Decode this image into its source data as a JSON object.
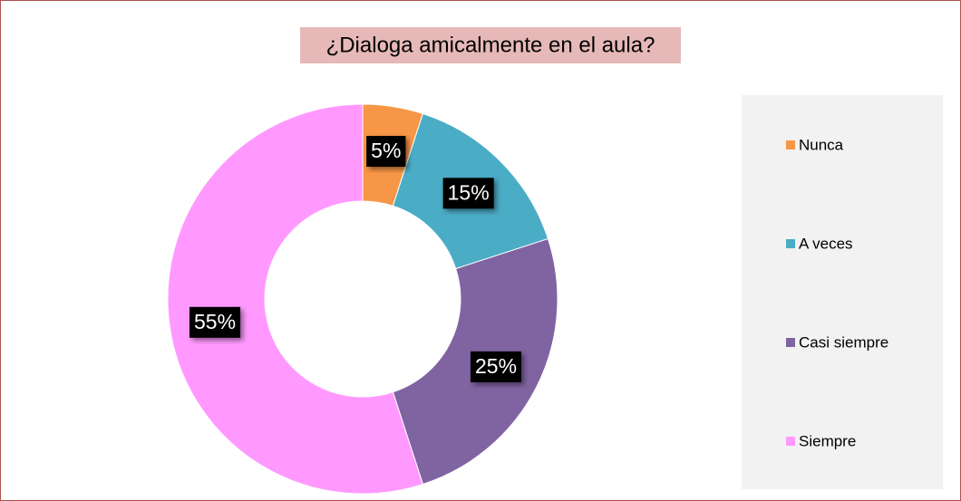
{
  "chart_data": {
    "type": "donut",
    "title": "¿Dialoga amicalmente en el aula?",
    "categories": [
      "Nunca",
      "A veces",
      "Casi siempre",
      "Siempre"
    ],
    "values": [
      5,
      15,
      25,
      55
    ],
    "value_labels": [
      "5%",
      "15%",
      "25%",
      "55%"
    ],
    "colors": [
      "#F79646",
      "#4BACC6",
      "#8064A2",
      "#FF99FF"
    ],
    "legend": "right"
  }
}
